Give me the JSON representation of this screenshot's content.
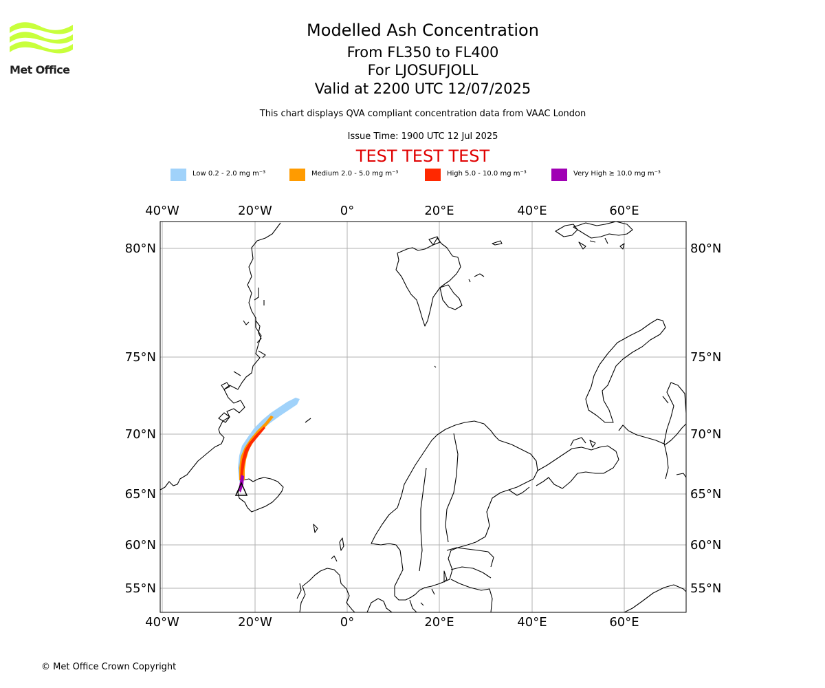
{
  "header": {
    "logo_text": "Met Office",
    "title": "Modelled Ash Concentration",
    "flight_levels": "From FL350 to FL400",
    "location": "For LJOSUFJOLL",
    "valid_time": "Valid at 2200 UTC 12/07/2025",
    "disclaimer": "This chart displays QVA compliant concentration data from VAAC London",
    "issue_time": "Issue Time: 1900 UTC 12 Jul 2025",
    "test_banner": "TEST TEST TEST"
  },
  "legend": [
    {
      "label": "Low 0.2 - 2.0 mg m⁻³",
      "color": "#a0d2fa"
    },
    {
      "label": "Medium 2.0 - 5.0 mg m⁻³",
      "color": "#ff9b00"
    },
    {
      "label": "High 5.0 - 10.0 mg m⁻³",
      "color": "#ff2800"
    },
    {
      "label": "Very High ≥ 10.0 mg m⁻³",
      "color": "#a000b4"
    }
  ],
  "map": {
    "lon_ticks": [
      "40°W",
      "20°W",
      "0°",
      "20°E",
      "40°E",
      "60°E"
    ],
    "lat_ticks": [
      "80°N",
      "75°N",
      "70°N",
      "65°N",
      "60°N",
      "55°N"
    ],
    "volcano_marker": "triangle-icon",
    "colors": {
      "coast": "#000000",
      "grid": "#b0b0b0"
    }
  },
  "footer": {
    "copyright": "© Met Office Crown Copyright"
  }
}
